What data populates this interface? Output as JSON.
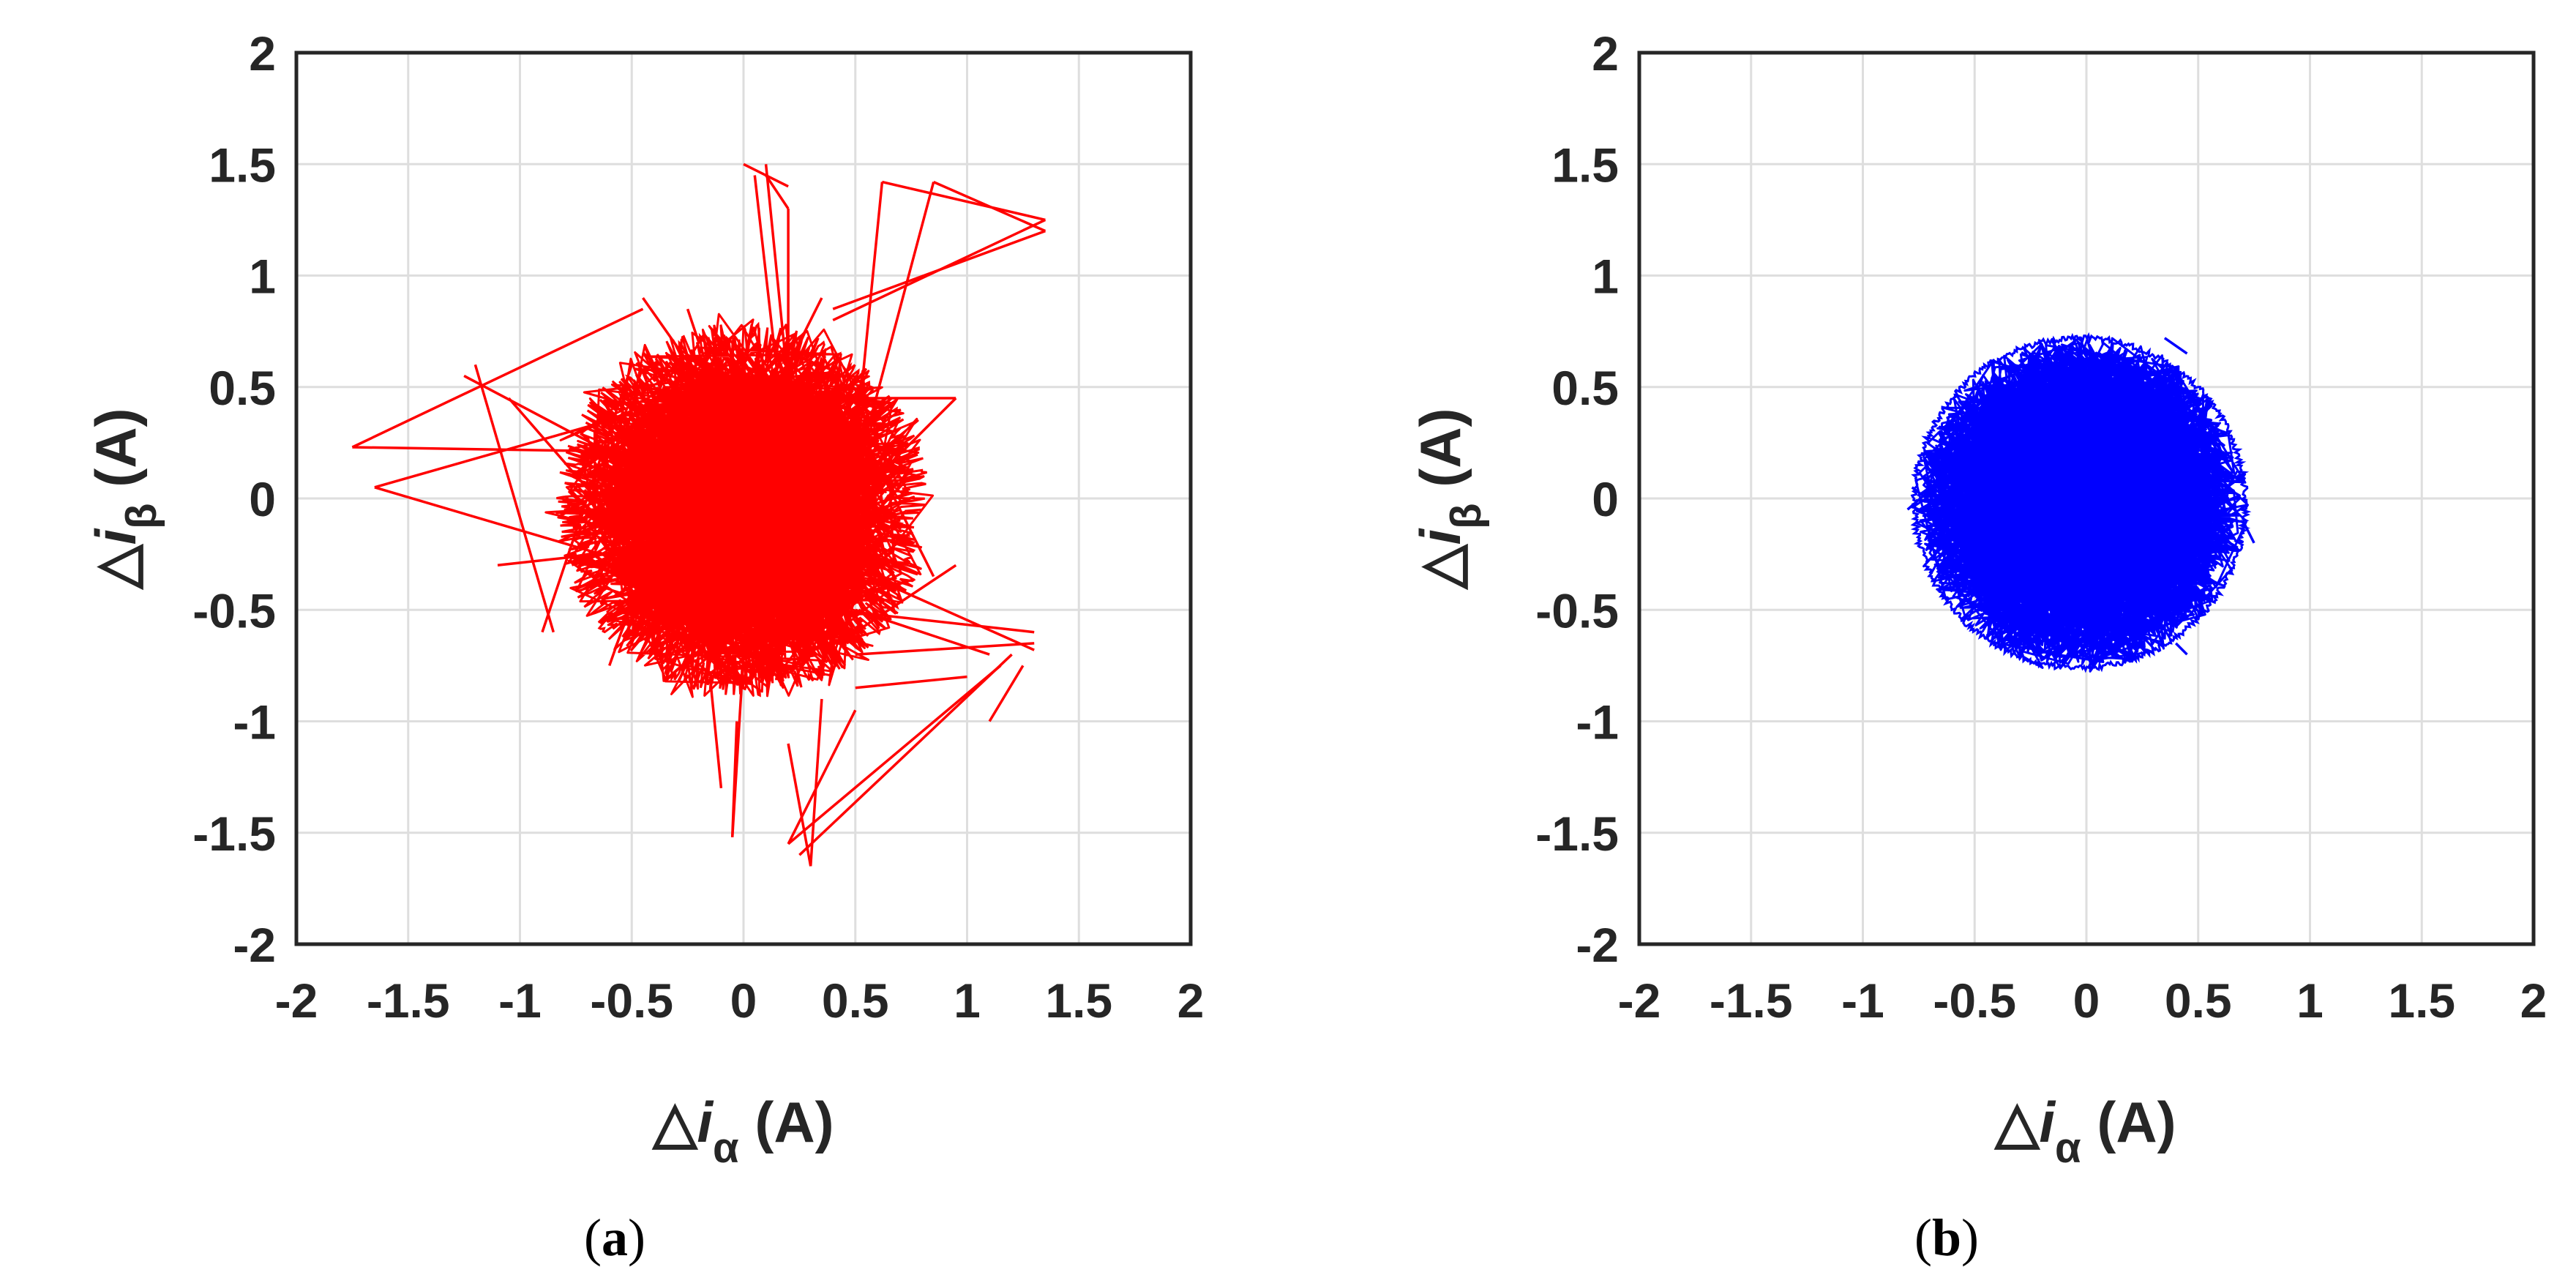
{
  "chart_data": [
    {
      "type": "line",
      "panel": "a",
      "caption_letter": "a",
      "xlabel": {
        "symbol": "△",
        "var": "i",
        "sub": "α",
        "unit": "(A)"
      },
      "ylabel": {
        "symbol": "△",
        "var": "i",
        "sub": "β",
        "unit": "(A)"
      },
      "xlim": [
        -2,
        2
      ],
      "ylim": [
        -2,
        2
      ],
      "xticks": [
        "-2",
        "-1.5",
        "-1",
        "-0.5",
        "0",
        "0.5",
        "1",
        "1.5",
        "2"
      ],
      "yticks": [
        "2",
        "1.5",
        "1",
        "0.5",
        "0",
        "-0.5",
        "-1",
        "-1.5",
        "-2"
      ],
      "grid": true,
      "color": "#ff0000",
      "core": {
        "center": [
          0.0,
          -0.05
        ],
        "radius": 0.75,
        "jitter": 0.4
      },
      "series": [
        {
          "x": [
            -1.75,
            0.1
          ],
          "y": [
            0.23,
            0.2
          ]
        },
        {
          "x": [
            -1.75,
            -0.45
          ],
          "y": [
            0.23,
            0.85
          ]
        },
        {
          "x": [
            -1.65,
            0.1
          ],
          "y": [
            0.05,
            0.55
          ]
        },
        {
          "x": [
            -1.65,
            -0.3
          ],
          "y": [
            0.05,
            -0.35
          ]
        },
        {
          "x": [
            -1.2,
            -0.85
          ],
          "y": [
            0.6,
            -0.6
          ]
        },
        {
          "x": [
            -1.25,
            -0.4
          ],
          "y": [
            0.55,
            0.1
          ]
        },
        {
          "x": [
            -1.05,
            -0.4
          ],
          "y": [
            0.45,
            -0.3
          ]
        },
        {
          "x": [
            -0.9,
            -0.5
          ],
          "y": [
            -0.6,
            0.6
          ]
        },
        {
          "x": [
            -1.1,
            -0.2
          ],
          "y": [
            -0.3,
            -0.2
          ]
        },
        {
          "x": [
            -0.45,
            -0.1
          ],
          "y": [
            0.9,
            0.4
          ]
        },
        {
          "x": [
            -0.6,
            -0.3
          ],
          "y": [
            -0.75,
            0.1
          ]
        },
        {
          "x": [
            0.0,
            0.2
          ],
          "y": [
            1.5,
            1.4
          ]
        },
        {
          "x": [
            0.05,
            0.18
          ],
          "y": [
            1.45,
            0.3
          ]
        },
        {
          "x": [
            0.1,
            0.2
          ],
          "y": [
            1.45,
            1.3
          ]
        },
        {
          "x": [
            0.1,
            0.2
          ],
          "y": [
            1.5,
            0.5
          ]
        },
        {
          "x": [
            0.2,
            0.2
          ],
          "y": [
            1.3,
            0.2
          ]
        },
        {
          "x": [
            0.4,
            1.35
          ],
          "y": [
            0.8,
            1.25
          ]
        },
        {
          "x": [
            0.4,
            1.35
          ],
          "y": [
            0.85,
            1.2
          ]
        },
        {
          "x": [
            0.62,
            1.35
          ],
          "y": [
            1.42,
            1.25
          ]
        },
        {
          "x": [
            0.62,
            0.45
          ],
          "y": [
            1.42,
            -0.3
          ]
        },
        {
          "x": [
            0.85,
            1.35
          ],
          "y": [
            1.42,
            1.2
          ]
        },
        {
          "x": [
            0.85,
            0.5
          ],
          "y": [
            1.42,
            0.1
          ]
        },
        {
          "x": [
            0.3,
            0.95
          ],
          "y": [
            0.45,
            0.45
          ]
        },
        {
          "x": [
            0.95,
            0.3
          ],
          "y": [
            0.45,
            -0.2
          ]
        },
        {
          "x": [
            0.35,
            0.85
          ],
          "y": [
            0.65,
            -0.35
          ]
        },
        {
          "x": [
            0.4,
            1.3
          ],
          "y": [
            -0.5,
            -0.6
          ]
        },
        {
          "x": [
            0.45,
            1.3
          ],
          "y": [
            -0.3,
            -0.68
          ]
        },
        {
          "x": [
            0.5,
            1.1
          ],
          "y": [
            -0.5,
            -0.7
          ]
        },
        {
          "x": [
            0.5,
            1.0
          ],
          "y": [
            -0.85,
            -0.8
          ]
        },
        {
          "x": [
            0.5,
            0.95
          ],
          "y": [
            -0.6,
            -0.3
          ]
        },
        {
          "x": [
            0.5,
            1.3
          ],
          "y": [
            -0.7,
            -0.65
          ]
        },
        {
          "x": [
            1.25,
            1.1
          ],
          "y": [
            -0.75,
            -1.0
          ]
        },
        {
          "x": [
            1.15,
            0.2
          ],
          "y": [
            -0.75,
            -1.55
          ]
        },
        {
          "x": [
            1.2,
            0.25
          ],
          "y": [
            -0.7,
            -1.6
          ]
        },
        {
          "x": [
            0.5,
            0.2
          ],
          "y": [
            -0.95,
            -1.55
          ]
        },
        {
          "x": [
            0.35,
            0.3
          ],
          "y": [
            -0.9,
            -1.65
          ]
        },
        {
          "x": [
            0.3,
            0.2
          ],
          "y": [
            -1.65,
            -1.1
          ]
        },
        {
          "x": [
            0.0,
            -0.05
          ],
          "y": [
            -0.7,
            -1.52
          ]
        },
        {
          "x": [
            -0.05,
            -0.03
          ],
          "y": [
            -1.52,
            -1.0
          ]
        },
        {
          "x": [
            -0.15,
            -0.1
          ],
          "y": [
            -0.8,
            -1.3
          ]
        },
        {
          "x": [
            -0.2,
            -0.25
          ],
          "y": [
            0.7,
            0.85
          ]
        },
        {
          "x": [
            0.35,
            0.2
          ],
          "y": [
            0.9,
            0.6
          ]
        }
      ]
    },
    {
      "type": "line",
      "panel": "b",
      "caption_letter": "b",
      "xlabel": {
        "symbol": "△",
        "var": "i",
        "sub": "α",
        "unit": "(A)"
      },
      "ylabel": {
        "symbol": "△",
        "var": "i",
        "sub": "β",
        "unit": "(A)"
      },
      "xlim": [
        -2,
        2
      ],
      "ylim": [
        -2,
        2
      ],
      "xticks": [
        "-2",
        "-1.5",
        "-1",
        "-0.5",
        "0",
        "0.5",
        "1",
        "1.5",
        "2"
      ],
      "yticks": [
        "2",
        "1.5",
        "1",
        "0.5",
        "0",
        "-0.5",
        "-1",
        "-1.5",
        "-2"
      ],
      "grid": true,
      "color": "#0000ff",
      "core": {
        "center": [
          -0.03,
          -0.02
        ],
        "radius": 0.74,
        "jitter": 0.06
      },
      "series": [
        {
          "x": [
            -0.78,
            -0.65
          ],
          "y": [
            0.05,
            -0.05
          ]
        },
        {
          "x": [
            -0.8,
            -0.65
          ],
          "y": [
            -0.05,
            0.08
          ]
        },
        {
          "x": [
            0.35,
            0.45
          ],
          "y": [
            0.72,
            0.65
          ]
        },
        {
          "x": [
            0.7,
            0.75
          ],
          "y": [
            -0.1,
            -0.2
          ]
        },
        {
          "x": [
            0.4,
            0.45
          ],
          "y": [
            -0.65,
            -0.7
          ]
        }
      ]
    }
  ]
}
